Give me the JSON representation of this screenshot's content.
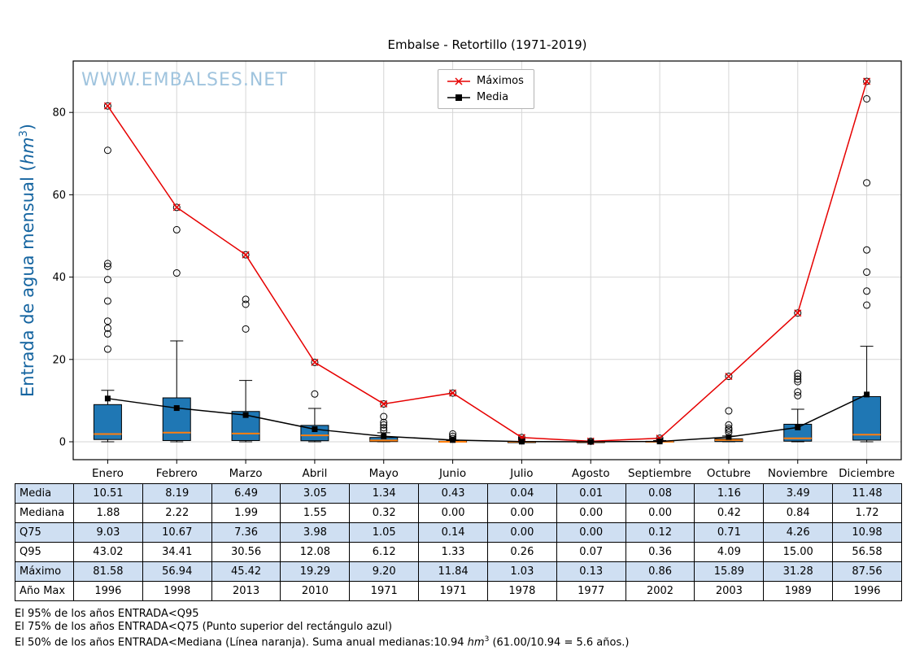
{
  "title": "Embalse - Retortillo (1971-2019)",
  "watermark": "WWW.EMBALSES.NET",
  "ylabel_parts": {
    "pre": "Entrada de agua mensual (",
    "unit": "hm",
    "sup": "3",
    "post": ")"
  },
  "colors": {
    "maximos_line": "#e60000",
    "media_line": "#000000",
    "box_fill": "#1f77b4",
    "median_line": "#ff7f0e",
    "grid": "#d6d6d6",
    "watermark": "#a0c4de",
    "ylabel": "#1464a0",
    "alt_row": "#cfdff2",
    "legend_border": "#b3b3b3"
  },
  "chart_data": {
    "type": "boxplot+line",
    "title": "Embalse - Retortillo (1971-2019)",
    "ylabel": "Entrada de agua mensual (hm³)",
    "categories": [
      "Enero",
      "Febrero",
      "Marzo",
      "Abril",
      "Mayo",
      "Junio",
      "Julio",
      "Agosto",
      "Septiembre",
      "Octubre",
      "Noviembre",
      "Diciembre"
    ],
    "yticks": [
      0,
      20,
      40,
      60,
      80
    ],
    "ylim": [
      -4.35,
      92.5
    ],
    "grid": true,
    "legend_position": "top-center",
    "series": [
      {
        "name": "Máximos",
        "color": "#e60000",
        "marker": "x",
        "values": [
          81.58,
          56.94,
          45.42,
          19.29,
          9.2,
          11.84,
          1.03,
          0.13,
          0.86,
          15.89,
          31.28,
          87.56
        ]
      },
      {
        "name": "Media",
        "color": "#000000",
        "marker": "square",
        "values": [
          10.51,
          8.19,
          6.49,
          3.05,
          1.34,
          0.43,
          0.04,
          0.01,
          0.08,
          1.16,
          3.49,
          11.48
        ]
      }
    ],
    "boxes": [
      {
        "q1": 0.55,
        "median": 1.88,
        "q3": 9.03,
        "whisker_low": 0,
        "whisker_high": 12.5,
        "outliers": [
          22.5,
          26.2,
          27.6,
          29.3,
          34.2,
          39.4,
          42.6,
          43.3,
          70.8,
          81.58
        ]
      },
      {
        "q1": 0.3,
        "median": 2.22,
        "q3": 10.67,
        "whisker_low": 0,
        "whisker_high": 24.5,
        "outliers": [
          41.0,
          51.5,
          56.94
        ]
      },
      {
        "q1": 0.3,
        "median": 1.99,
        "q3": 7.36,
        "whisker_low": 0,
        "whisker_high": 14.9,
        "outliers": [
          27.4,
          33.4,
          34.6,
          45.42
        ]
      },
      {
        "q1": 0.25,
        "median": 1.55,
        "q3": 3.98,
        "whisker_low": 0,
        "whisker_high": 8.1,
        "outliers": [
          11.6,
          19.29
        ]
      },
      {
        "q1": 0.05,
        "median": 0.32,
        "q3": 1.05,
        "whisker_low": 0,
        "whisker_high": 2.2,
        "outliers": [
          2.8,
          3.4,
          4.1,
          4.7,
          6.12,
          9.2
        ]
      },
      {
        "q1": 0.0,
        "median": 0.0,
        "q3": 0.14,
        "whisker_low": 0,
        "whisker_high": 0.3,
        "outliers": [
          0.8,
          1.33,
          1.9,
          11.84
        ]
      },
      {
        "q1": 0.0,
        "median": 0.0,
        "q3": 0.0,
        "whisker_low": 0,
        "whisker_high": 0.05,
        "outliers": [
          0.26,
          0.55,
          1.03
        ]
      },
      {
        "q1": 0.0,
        "median": 0.0,
        "q3": 0.0,
        "whisker_low": 0,
        "whisker_high": 0.02,
        "outliers": [
          0.13
        ]
      },
      {
        "q1": 0.0,
        "median": 0.0,
        "q3": 0.12,
        "whisker_low": 0,
        "whisker_high": 0.3,
        "outliers": [
          0.36,
          0.86
        ]
      },
      {
        "q1": 0.05,
        "median": 0.42,
        "q3": 0.71,
        "whisker_low": 0,
        "whisker_high": 1.4,
        "outliers": [
          2.3,
          2.9,
          3.3,
          4.09,
          7.5,
          15.89
        ]
      },
      {
        "q1": 0.15,
        "median": 0.84,
        "q3": 4.26,
        "whisker_low": 0,
        "whisker_high": 7.9,
        "outliers": [
          11.2,
          12.1,
          14.6,
          15.2,
          15.9,
          16.6,
          31.28
        ]
      },
      {
        "q1": 0.4,
        "median": 1.72,
        "q3": 10.98,
        "whisker_low": 0,
        "whisker_high": 23.2,
        "outliers": [
          33.2,
          36.6,
          41.2,
          46.6,
          62.9,
          83.3,
          87.56
        ]
      }
    ]
  },
  "table": {
    "rows": [
      {
        "label": "Media",
        "values": [
          "10.51",
          "8.19",
          "6.49",
          "3.05",
          "1.34",
          "0.43",
          "0.04",
          "0.01",
          "0.08",
          "1.16",
          "3.49",
          "11.48"
        ]
      },
      {
        "label": "Mediana",
        "values": [
          "1.88",
          "2.22",
          "1.99",
          "1.55",
          "0.32",
          "0.00",
          "0.00",
          "0.00",
          "0.00",
          "0.42",
          "0.84",
          "1.72"
        ]
      },
      {
        "label": "Q75",
        "values": [
          "9.03",
          "10.67",
          "7.36",
          "3.98",
          "1.05",
          "0.14",
          "0.00",
          "0.00",
          "0.12",
          "0.71",
          "4.26",
          "10.98"
        ]
      },
      {
        "label": "Q95",
        "values": [
          "43.02",
          "34.41",
          "30.56",
          "12.08",
          "6.12",
          "1.33",
          "0.26",
          "0.07",
          "0.36",
          "4.09",
          "15.00",
          "56.58"
        ]
      },
      {
        "label": "Máximo",
        "values": [
          "81.58",
          "56.94",
          "45.42",
          "19.29",
          "9.20",
          "11.84",
          "1.03",
          "0.13",
          "0.86",
          "15.89",
          "31.28",
          "87.56"
        ]
      },
      {
        "label": "Año Max",
        "values": [
          "1996",
          "1998",
          "2013",
          "2010",
          "1971",
          "1971",
          "1978",
          "1977",
          "2002",
          "2003",
          "1989",
          "1996"
        ]
      }
    ]
  },
  "footnotes": {
    "line1": "El 95% de los años ENTRADA<Q95",
    "line2": "El 75% de los años ENTRADA<Q75 (Punto superior del rectángulo azul)",
    "line3_pre": "El 50% de los años ENTRADA<Mediana (Línea naranja). Suma anual medianas:10.94 ",
    "line3_unit": "hm",
    "line3_sup": "3",
    "line3_post": " (61.00/10.94 = 5.6 años.)"
  }
}
